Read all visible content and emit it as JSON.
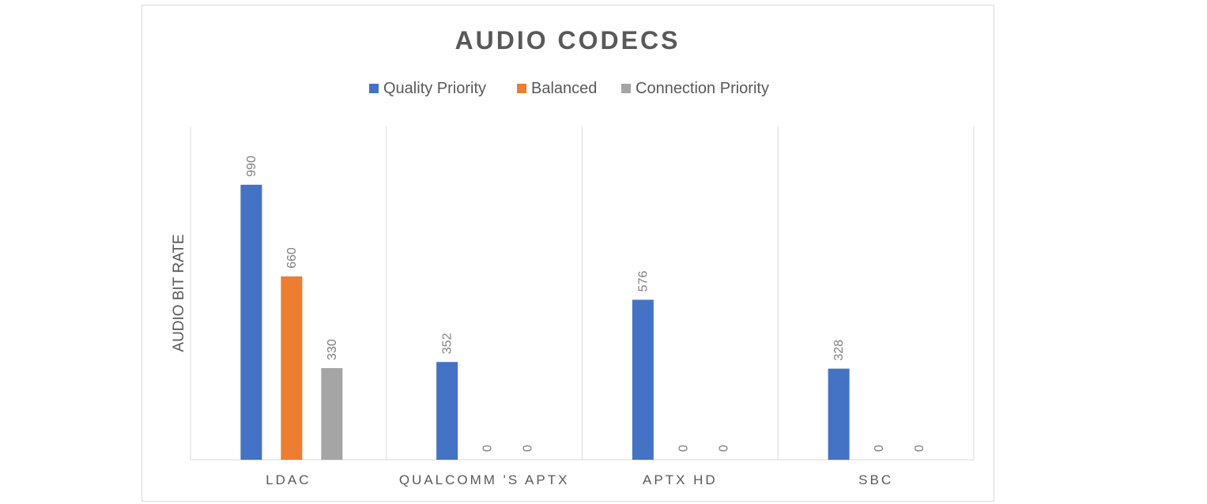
{
  "chart_data": {
    "type": "bar",
    "title": "AUDIO CODECS",
    "xlabel": "",
    "ylabel": "AUDIO BIT RATE",
    "categories": [
      "LDAC",
      "QUALCOMM 'S APTX",
      "APTX HD",
      "SBC"
    ],
    "series": [
      {
        "name": "Quality Priority",
        "color": "#4472c4",
        "values": [
          990,
          352,
          576,
          328
        ]
      },
      {
        "name": "Balanced",
        "color": "#ed7d31",
        "values": [
          660,
          0,
          0,
          0
        ]
      },
      {
        "name": "Connection Priority",
        "color": "#a5a5a5",
        "values": [
          330,
          0,
          0,
          0
        ]
      }
    ],
    "ylim": [
      0,
      1200
    ],
    "grid": false,
    "category_separators": true,
    "data_labels": true,
    "legend_position": "top"
  }
}
